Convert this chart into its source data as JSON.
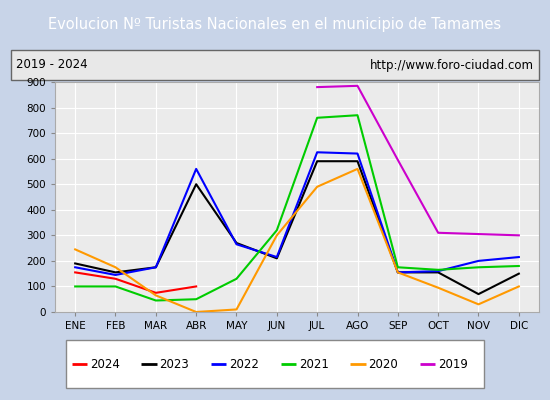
{
  "title": "Evolucion Nº Turistas Nacionales en el municipio de Tamames",
  "subtitle_left": "2019 - 2024",
  "subtitle_right": "http://www.foro-ciudad.com",
  "months": [
    "ENE",
    "FEB",
    "MAR",
    "ABR",
    "MAY",
    "JUN",
    "JUL",
    "AGO",
    "SEP",
    "OCT",
    "NOV",
    "DIC"
  ],
  "ylim": [
    0,
    900
  ],
  "yticks": [
    0,
    100,
    200,
    300,
    400,
    500,
    600,
    700,
    800,
    900
  ],
  "series": {
    "2024": {
      "color": "#ff0000",
      "data": [
        155,
        130,
        75,
        100,
        null,
        null,
        null,
        null,
        null,
        null,
        null,
        null
      ]
    },
    "2023": {
      "color": "#000000",
      "data": [
        190,
        155,
        175,
        500,
        270,
        210,
        590,
        590,
        155,
        155,
        70,
        150
      ]
    },
    "2022": {
      "color": "#0000ff",
      "data": [
        175,
        145,
        175,
        560,
        265,
        215,
        625,
        620,
        155,
        160,
        200,
        215
      ]
    },
    "2021": {
      "color": "#00cc00",
      "data": [
        100,
        100,
        45,
        50,
        130,
        320,
        760,
        770,
        175,
        165,
        175,
        180
      ]
    },
    "2020": {
      "color": "#ff9900",
      "data": [
        245,
        175,
        65,
        0,
        10,
        300,
        490,
        560,
        155,
        95,
        30,
        100
      ]
    },
    "2019": {
      "color": "#cc00cc",
      "data": [
        null,
        null,
        null,
        null,
        null,
        null,
        880,
        885,
        595,
        310,
        null,
        300
      ]
    }
  },
  "title_bg_color": "#4472c4",
  "title_text_color": "#ffffff",
  "plot_bg_color": "#ebebeb",
  "grid_color": "#ffffff",
  "fig_bg_color": "#c8d4e8",
  "legend_order": [
    "2024",
    "2023",
    "2022",
    "2021",
    "2020",
    "2019"
  ]
}
